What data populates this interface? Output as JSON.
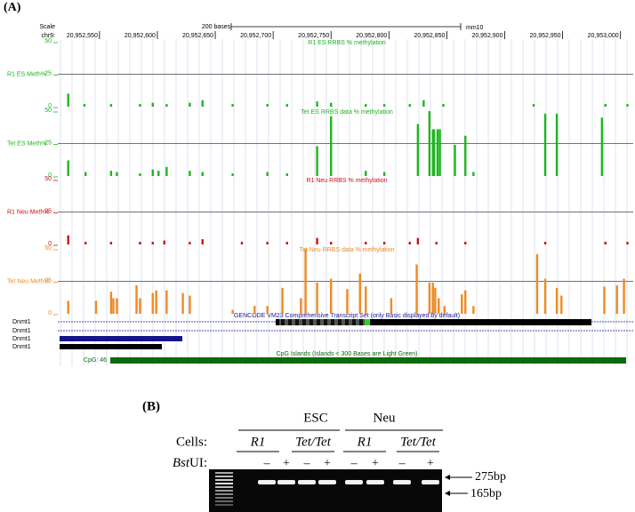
{
  "panel_a": {
    "label": "(A)",
    "scale": "Scale",
    "scale_bar": "200 bases",
    "assembly": "mm10",
    "chrom": "chr9:",
    "xlim": [
      20952514,
      20953011
    ],
    "xticks": [
      {
        "value": 20952550,
        "label": "20,952,550"
      },
      {
        "value": 20952600,
        "label": "20,952,600"
      },
      {
        "value": 20952650,
        "label": "20,952,650"
      },
      {
        "value": 20952700,
        "label": "20,952,700"
      },
      {
        "value": 20952750,
        "label": "20,952,750"
      },
      {
        "value": 20952800,
        "label": "20,952,800"
      },
      {
        "value": 20952850,
        "label": "20,952,850"
      },
      {
        "value": 20952900,
        "label": "20,952,900"
      },
      {
        "value": 20952950,
        "label": "20,952,950"
      },
      {
        "value": 20953000,
        "label": "20,953,000"
      }
    ],
    "ylim": [
      0,
      50
    ],
    "tracks": [
      {
        "title": "R1 ES RRBS % methylation",
        "label": "R1 ES Meth%",
        "color": "#1fb51f",
        "yticks": [
          50,
          25,
          0
        ],
        "positions": [
          20952523,
          20952537,
          20952560,
          20952585,
          20952596,
          20952608,
          20952628,
          20952639,
          20952665,
          20952695,
          20952712,
          20952738,
          20952750,
          20952780,
          20952796,
          20952818,
          20952830,
          20952847,
          20952925,
          20952987,
          20953006
        ],
        "values": [
          10,
          2,
          2,
          2,
          3,
          2,
          3,
          5,
          2,
          2,
          2,
          4,
          3,
          2,
          2,
          2,
          5,
          2,
          2,
          2,
          2
        ]
      },
      {
        "title": "Tet ES RRBS data % methylation",
        "label": "Tet ES Meth%",
        "color": "#1fb51f",
        "yticks": [
          50,
          25,
          0
        ],
        "positions": [
          20952523,
          20952538,
          20952560,
          20952565,
          20952585,
          20952596,
          20952601,
          20952608,
          20952628,
          20952639,
          20952665,
          20952695,
          20952712,
          20952738,
          20952750,
          20952780,
          20952796,
          20952825,
          20952835,
          20952838,
          20952839,
          20952842,
          20952844,
          20952857,
          20952866,
          20952873,
          20952935,
          20952945,
          20952984
        ],
        "values": [
          12,
          3,
          4,
          3,
          2,
          5,
          4,
          7,
          4,
          3,
          2,
          3,
          2,
          23,
          46,
          4,
          3,
          40,
          50,
          36,
          36,
          36,
          36,
          24,
          31,
          3,
          48,
          48,
          45
        ]
      },
      {
        "title": "R1 Neu RRBS % methylation",
        "label": "R1 Neu Meth%",
        "color": "#c81414",
        "yticks": [
          50,
          25,
          0
        ],
        "positions": [
          20952523,
          20952538,
          20952560,
          20952585,
          20952596,
          20952606,
          20952628,
          20952639,
          20952673,
          20952695,
          20952712,
          20952738,
          20952750,
          20952780,
          20952796,
          20952818,
          20952825,
          20952841,
          20952866,
          20952935,
          20952987,
          20953006
        ],
        "values": [
          7,
          2,
          2,
          2,
          2,
          3,
          2,
          4,
          2,
          2,
          2,
          5,
          2,
          2,
          2,
          2,
          5,
          2,
          2,
          2,
          2,
          2
        ]
      },
      {
        "title": "Tet Neu RRBS data % methylation",
        "label": "Tet Neu Meth%",
        "color": "#ee8a24",
        "yticks": [
          50,
          25,
          0
        ],
        "positions": [
          20952523,
          20952547,
          20952560,
          20952562,
          20952565,
          20952582,
          20952585,
          20952596,
          20952599,
          20952608,
          20952622,
          20952628,
          20952665,
          20952684,
          20952695,
          20952708,
          20952724,
          20952728,
          20952738,
          20952750,
          20952764,
          20952775,
          20952780,
          20952802,
          20952824,
          20952835,
          20952838,
          20952840,
          20952843,
          20952848,
          20952863,
          20952866,
          20952873,
          20952928,
          20952935,
          20952945,
          20952949,
          20952986,
          20952997,
          20953003
        ],
        "values": [
          10,
          10,
          17,
          12,
          12,
          22,
          12,
          16,
          18,
          18,
          16,
          14,
          3,
          6,
          6,
          20,
          12,
          50,
          24,
          27,
          19,
          31,
          21,
          12,
          38,
          24,
          24,
          20,
          12,
          6,
          15,
          18,
          6,
          46,
          27,
          20,
          14,
          21,
          22,
          27
        ]
      }
    ],
    "gencode_title": "GENCODE VM23 Comprehensive Transcript Set (only Basic displayed by default)",
    "transcripts": [
      "Dnmt1",
      "Dnmt1",
      "Dnmt1",
      "Dnmt1"
    ],
    "cpg_title": "CpG Islands (Islands < 300 Bases are Light Green)",
    "cpg_label": "CpG: 46"
  },
  "panel_b": {
    "label": "(B)",
    "groups": [
      "ESC",
      "Neu"
    ],
    "cells_label": "Cells:",
    "cells": [
      "R1",
      "Tet/Tet",
      "R1",
      "Tet/Tet"
    ],
    "enzyme_italic": "Bst",
    "enzyme_rest": "UI:",
    "treatments": [
      "–",
      "+",
      "–",
      "+",
      "–",
      "+",
      "–",
      "+"
    ],
    "markers": [
      "275bp",
      "165bp"
    ]
  }
}
